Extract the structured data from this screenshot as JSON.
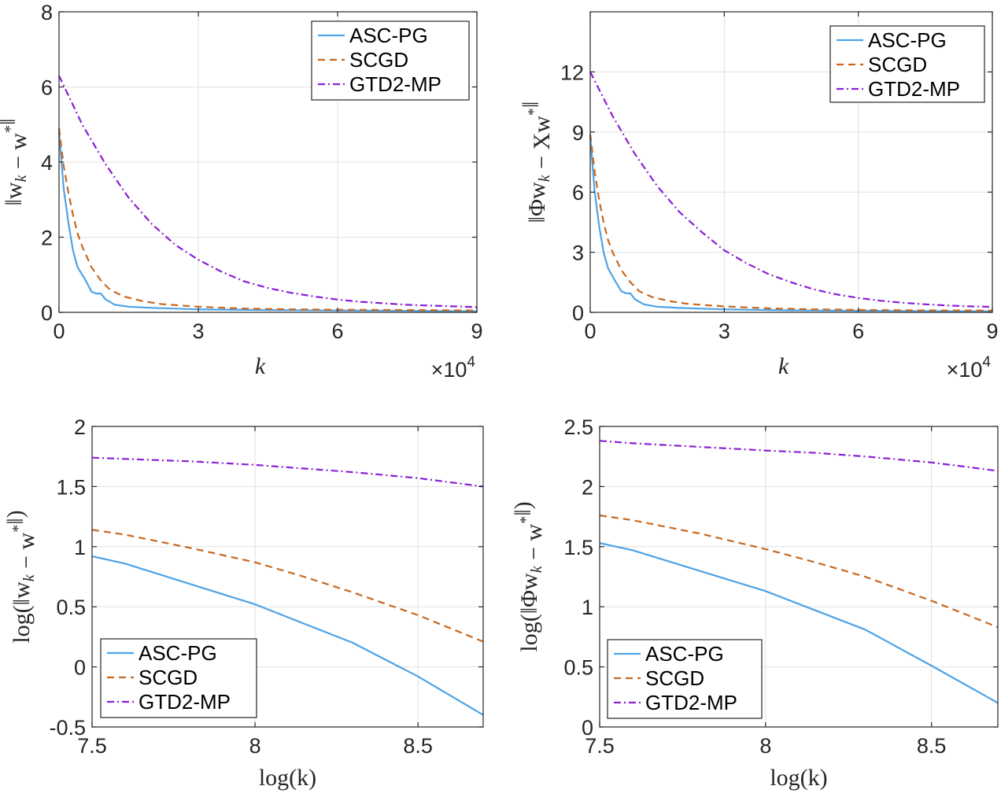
{
  "chart_data": [
    {
      "type": "line",
      "ylabel": "‖w_k − w*‖",
      "xlabel": "k",
      "x_exponent_label": "×10^4",
      "xlim": [
        0,
        9
      ],
      "ylim": [
        0,
        8
      ],
      "xticks": [
        "0",
        "3",
        "6",
        "9"
      ],
      "yticks": [
        "0",
        "2",
        "4",
        "6",
        "8"
      ],
      "legend_position": "top-right",
      "series": [
        {
          "name": "ASC-PG",
          "color": "#4ea3e6",
          "dash": "solid",
          "x": [
            0,
            0.1,
            0.2,
            0.3,
            0.4,
            0.55,
            0.7,
            0.8,
            0.9,
            1.0,
            1.2,
            1.5,
            2,
            3,
            4.5,
            6,
            7.5,
            9
          ],
          "y": [
            4.8,
            3.3,
            2.4,
            1.65,
            1.2,
            0.9,
            0.55,
            0.5,
            0.5,
            0.35,
            0.2,
            0.15,
            0.12,
            0.08,
            0.06,
            0.05,
            0.04,
            0.03
          ]
        },
        {
          "name": "SCGD",
          "color": "#c8681f",
          "dash": "dashed",
          "x": [
            0,
            0.1,
            0.2,
            0.3,
            0.4,
            0.5,
            0.7,
            0.9,
            1.1,
            1.4,
            1.8,
            2.2,
            3,
            4,
            5,
            6,
            7.5,
            9
          ],
          "y": [
            4.9,
            3.9,
            3.2,
            2.6,
            2.1,
            1.75,
            1.2,
            0.85,
            0.6,
            0.42,
            0.3,
            0.22,
            0.15,
            0.1,
            0.08,
            0.07,
            0.06,
            0.05
          ]
        },
        {
          "name": "GTD2-MP",
          "color": "#8b1fd6",
          "dash": "dashdot",
          "x": [
            0,
            0.5,
            1,
            1.5,
            2,
            2.5,
            3,
            3.5,
            4,
            4.5,
            5,
            5.5,
            6,
            6.5,
            7,
            7.5,
            8,
            8.5,
            9
          ],
          "y": [
            6.3,
            5.0,
            3.95,
            3.05,
            2.35,
            1.8,
            1.4,
            1.08,
            0.82,
            0.65,
            0.52,
            0.42,
            0.34,
            0.28,
            0.24,
            0.2,
            0.18,
            0.16,
            0.14
          ]
        }
      ]
    },
    {
      "type": "line",
      "ylabel": "‖Φw_k − Xw*‖",
      "xlabel": "k",
      "x_exponent_label": "×10^4",
      "xlim": [
        0,
        9
      ],
      "ylim": [
        0,
        15
      ],
      "xticks": [
        "0",
        "3",
        "6",
        "9"
      ],
      "yticks": [
        "0",
        "3",
        "6",
        "9",
        "12"
      ],
      "legend_position": "top-right",
      "series": [
        {
          "name": "ASC-PG",
          "color": "#4ea3e6",
          "dash": "solid",
          "x": [
            0,
            0.1,
            0.2,
            0.3,
            0.4,
            0.55,
            0.7,
            0.8,
            0.9,
            1.0,
            1.2,
            1.5,
            2,
            3,
            4.5,
            6,
            7.5,
            9
          ],
          "y": [
            8.8,
            6.0,
            4.3,
            3.0,
            2.2,
            1.6,
            1.05,
            0.95,
            0.95,
            0.65,
            0.4,
            0.28,
            0.22,
            0.15,
            0.1,
            0.08,
            0.06,
            0.05
          ]
        },
        {
          "name": "SCGD",
          "color": "#c8681f",
          "dash": "dashed",
          "x": [
            0,
            0.1,
            0.2,
            0.3,
            0.4,
            0.5,
            0.7,
            0.9,
            1.1,
            1.4,
            1.8,
            2.2,
            3,
            4,
            5,
            6,
            7.5,
            9
          ],
          "y": [
            8.9,
            7.0,
            5.6,
            4.5,
            3.6,
            3.0,
            2.1,
            1.5,
            1.05,
            0.75,
            0.55,
            0.42,
            0.3,
            0.2,
            0.15,
            0.12,
            0.1,
            0.09
          ]
        },
        {
          "name": "GTD2-MP",
          "color": "#8b1fd6",
          "dash": "dashdot",
          "x": [
            0,
            0.5,
            1,
            1.5,
            2,
            2.5,
            3,
            3.5,
            4,
            4.5,
            5,
            5.5,
            6,
            6.5,
            7,
            7.5,
            8,
            8.5,
            9
          ],
          "y": [
            12.0,
            9.8,
            7.9,
            6.3,
            5.0,
            4.0,
            3.1,
            2.45,
            1.9,
            1.5,
            1.15,
            0.9,
            0.72,
            0.58,
            0.48,
            0.4,
            0.34,
            0.3,
            0.27
          ]
        }
      ]
    },
    {
      "type": "line",
      "ylabel": "log(‖w_k − w*‖)",
      "xlabel": "log(k)",
      "xlim": [
        7.5,
        8.7
      ],
      "ylim": [
        -0.5,
        2
      ],
      "xticks": [
        "7.5",
        "8",
        "8.5"
      ],
      "yticks": [
        "-0.5",
        "0",
        "0.5",
        "1",
        "1.5",
        "2"
      ],
      "legend_position": "bottom-left",
      "series": [
        {
          "name": "ASC-PG",
          "color": "#4ea3e6",
          "dash": "solid",
          "x": [
            7.5,
            7.6,
            7.8,
            8.0,
            8.15,
            8.3,
            8.5,
            8.7
          ],
          "y": [
            0.92,
            0.86,
            0.69,
            0.52,
            0.36,
            0.2,
            -0.08,
            -0.4
          ]
        },
        {
          "name": "SCGD",
          "color": "#c8681f",
          "dash": "dashed",
          "x": [
            7.5,
            7.6,
            7.8,
            8.0,
            8.15,
            8.3,
            8.5,
            8.7
          ],
          "y": [
            1.14,
            1.1,
            0.99,
            0.87,
            0.75,
            0.62,
            0.43,
            0.21
          ]
        },
        {
          "name": "GTD2-MP",
          "color": "#8b1fd6",
          "dash": "dashdot",
          "x": [
            7.5,
            7.6,
            7.8,
            8.0,
            8.15,
            8.3,
            8.5,
            8.7
          ],
          "y": [
            1.74,
            1.73,
            1.71,
            1.68,
            1.65,
            1.62,
            1.57,
            1.5
          ]
        }
      ]
    },
    {
      "type": "line",
      "ylabel": "log(‖Φw_k − w*‖)",
      "xlabel": "log(k)",
      "xlim": [
        7.5,
        8.7
      ],
      "ylim": [
        0,
        2.5
      ],
      "xticks": [
        "7.5",
        "8",
        "8.5"
      ],
      "yticks": [
        "0",
        "0.5",
        "1",
        "1.5",
        "2",
        "2.5"
      ],
      "legend_position": "bottom-left",
      "series": [
        {
          "name": "ASC-PG",
          "color": "#4ea3e6",
          "dash": "solid",
          "x": [
            7.5,
            7.6,
            7.8,
            8.0,
            8.15,
            8.3,
            8.5,
            8.7
          ],
          "y": [
            1.53,
            1.47,
            1.3,
            1.13,
            0.97,
            0.81,
            0.51,
            0.2
          ]
        },
        {
          "name": "SCGD",
          "color": "#c8681f",
          "dash": "dashed",
          "x": [
            7.5,
            7.6,
            7.8,
            8.0,
            8.15,
            8.3,
            8.5,
            8.7
          ],
          "y": [
            1.76,
            1.72,
            1.61,
            1.48,
            1.37,
            1.25,
            1.05,
            0.83
          ]
        },
        {
          "name": "GTD2-MP",
          "color": "#8b1fd6",
          "dash": "dashdot",
          "x": [
            7.5,
            7.6,
            7.8,
            8.0,
            8.15,
            8.3,
            8.5,
            8.7
          ],
          "y": [
            2.38,
            2.36,
            2.33,
            2.3,
            2.28,
            2.25,
            2.2,
            2.13
          ]
        }
      ]
    }
  ]
}
